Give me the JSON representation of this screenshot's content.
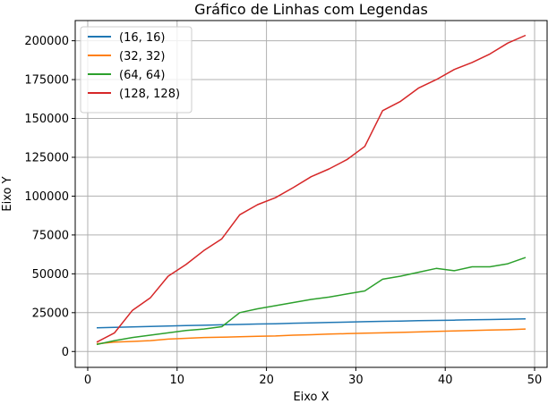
{
  "chart_data": {
    "type": "line",
    "title": "Gráfico de Linhas com Legendas",
    "xlabel": "Eixo X",
    "ylabel": "Eixo Y",
    "xlim": [
      -1.4,
      51.4
    ],
    "ylim": [
      -10200,
      213000
    ],
    "xticks": [
      0,
      10,
      20,
      30,
      40,
      50
    ],
    "yticks": [
      0,
      25000,
      50000,
      75000,
      100000,
      125000,
      150000,
      175000,
      200000
    ],
    "grid": true,
    "legend_position": "top-left",
    "x": [
      1,
      3,
      5,
      7,
      9,
      11,
      13,
      15,
      17,
      19,
      21,
      23,
      25,
      27,
      29,
      31,
      33,
      35,
      37,
      39,
      41,
      43,
      45,
      47,
      49
    ],
    "series": [
      {
        "name": "(16, 16)",
        "color": "#1f77b4",
        "values": [
          15200,
          15500,
          15800,
          16100,
          16400,
          16700,
          16900,
          17200,
          17400,
          17700,
          17900,
          18200,
          18400,
          18700,
          18900,
          19200,
          19400,
          19600,
          19800,
          20000,
          20200,
          20400,
          20600,
          20800,
          21000
        ]
      },
      {
        "name": "(32, 32)",
        "color": "#ff7f0e",
        "values": [
          5000,
          6000,
          6500,
          7000,
          8000,
          8500,
          9000,
          9200,
          9500,
          9800,
          10000,
          10500,
          10800,
          11200,
          11500,
          11800,
          12000,
          12300,
          12600,
          12900,
          13200,
          13500,
          13800,
          14000,
          14500
        ]
      },
      {
        "name": "(64, 64)",
        "color": "#2ca02c",
        "values": [
          4500,
          7000,
          9000,
          10500,
          12000,
          13500,
          14500,
          16000,
          25000,
          27500,
          29500,
          31500,
          33500,
          35000,
          37000,
          39000,
          46500,
          48500,
          51000,
          53500,
          52000,
          54500,
          54500,
          56500,
          60500
        ]
      },
      {
        "name": "(128, 128)",
        "color": "#d62728",
        "values": [
          6000,
          12000,
          26500,
          34500,
          48500,
          56000,
          65000,
          72500,
          88000,
          94500,
          99000,
          105500,
          112500,
          117500,
          123500,
          132000,
          155000,
          161000,
          169500,
          175000,
          181500,
          186000,
          191500,
          198500,
          203500
        ]
      }
    ]
  }
}
